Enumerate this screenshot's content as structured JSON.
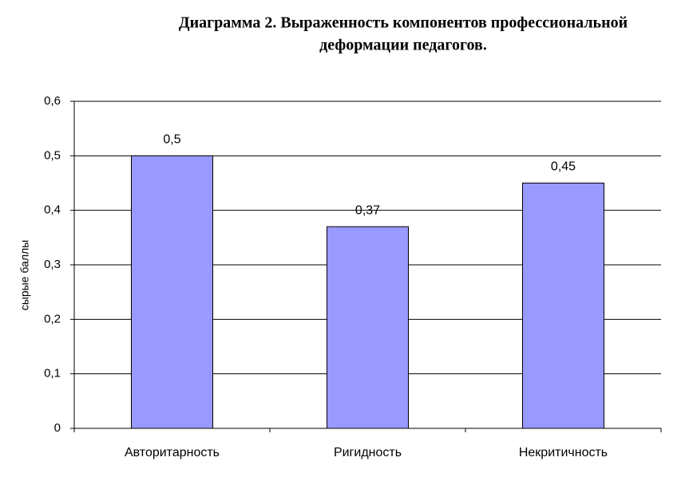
{
  "chart_data": {
    "type": "bar",
    "title": [
      "Диаграмма 2. Выраженность компонентов профессиональной",
      "деформации педагогов."
    ],
    "y_label": "сырые баллы",
    "categories": [
      "Авторитарность",
      "Ригидность",
      "Некритичность"
    ],
    "values": [
      0.5,
      0.37,
      0.45
    ],
    "value_labels": [
      "0,5",
      "0,37",
      "0,45"
    ],
    "color": "#9999ff",
    "ylim": [
      0,
      0.6
    ],
    "yticks": [
      0,
      {
        "value": 0.1,
        "label": "0,1"
      },
      {
        "value": 0.2,
        "label": "0,2"
      },
      {
        "value": 0.3,
        "label": "0,3"
      },
      {
        "value": 0.4,
        "label": "0,4"
      },
      {
        "value": 0.5,
        "label": "0,5"
      },
      {
        "value": 0.6,
        "label": "0,6"
      }
    ],
    "grid": true
  }
}
